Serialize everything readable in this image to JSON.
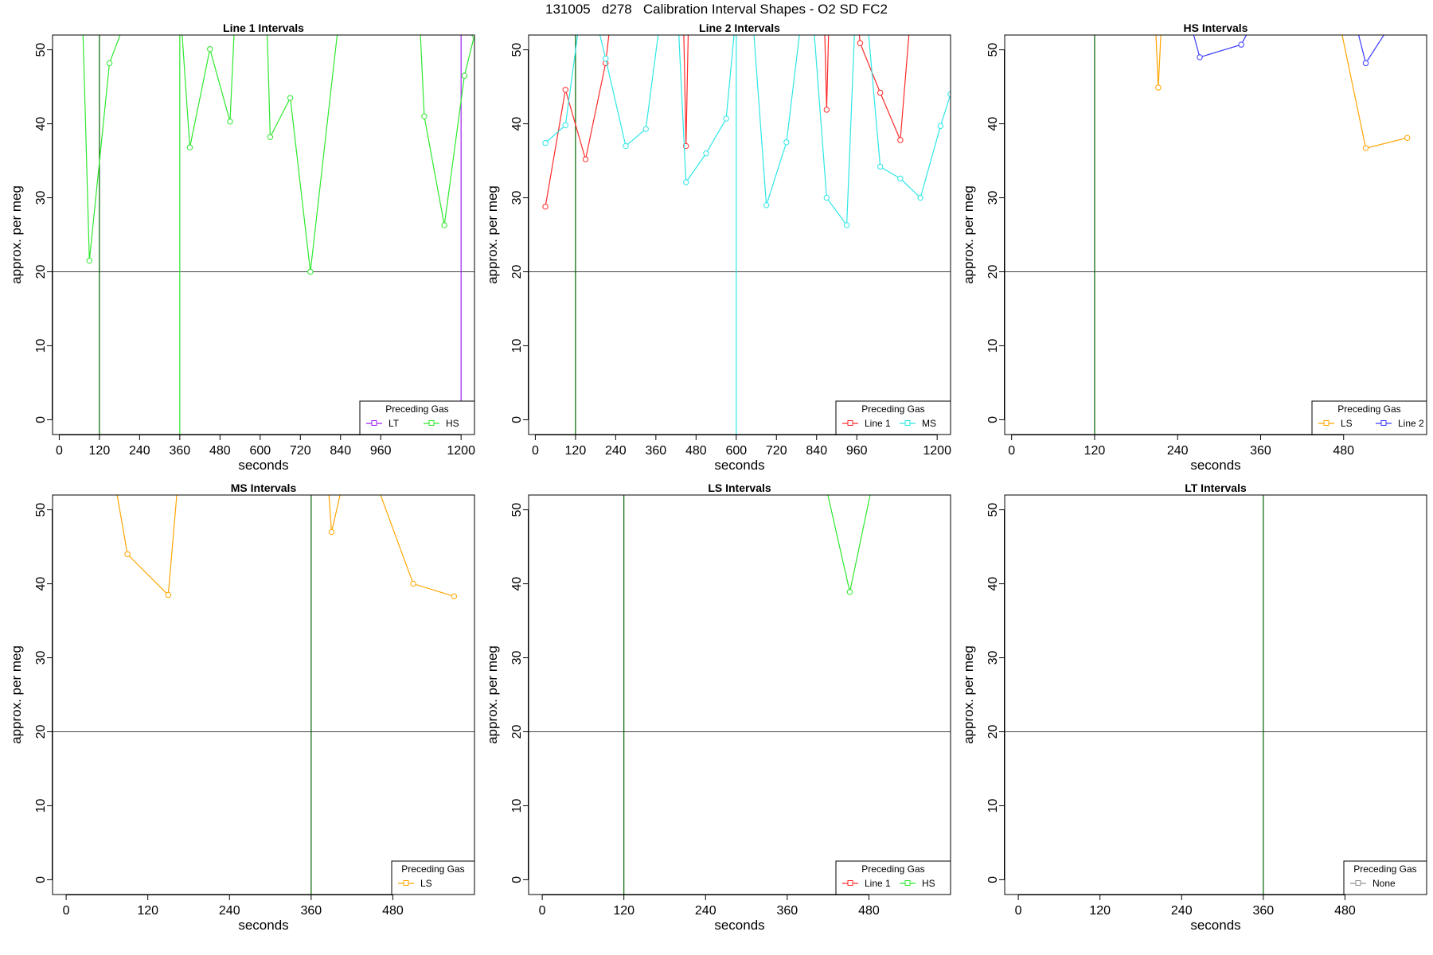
{
  "title": "131005   d278   Calibration Interval Shapes - O2 SD FC2",
  "colors": {
    "Line 1": "#ff2a2a",
    "Line 2": "#3a3aff",
    "HS": "#2ee82e",
    "MS": "#2ee6e6",
    "LS": "#ffa500",
    "LT": "#a020f0",
    "None": "#909090",
    "vline": "#006400",
    "hline": "#444444"
  },
  "chart_data": [
    {
      "type": "line",
      "title": "Line 1 Intervals",
      "xlabel": "seconds",
      "ylabel": "approx. per meg",
      "xlim": [
        -20,
        1240
      ],
      "ylim": [
        -2,
        52
      ],
      "xticks": [
        0,
        120,
        240,
        360,
        480,
        600,
        720,
        840,
        960,
        1200
      ],
      "yticks": [
        0,
        10,
        20,
        30,
        40,
        50
      ],
      "hline": 20,
      "vlines": [
        {
          "x": 120,
          "color": "vline"
        },
        {
          "x": 360,
          "color": "HS"
        },
        {
          "x": 1200,
          "color": "LT"
        }
      ],
      "legend": {
        "title": "Preceding Gas",
        "entries": [
          "LT",
          "HS"
        ]
      },
      "series": [
        {
          "name": "HS",
          "x": [
            60,
            90,
            150,
            190
          ],
          "y": [
            70,
            21.5,
            48.2,
            53
          ]
        },
        {
          "name": "HS",
          "x": [
            340,
            390,
            450,
            510,
            530
          ],
          "y": [
            70,
            36.8,
            50.1,
            40.3,
            60
          ]
        },
        {
          "name": "HS",
          "x": [
            610,
            630,
            690,
            750,
            850
          ],
          "y": [
            70,
            38.2,
            43.5,
            20.0,
            60
          ]
        },
        {
          "name": "HS",
          "x": [
            1060,
            1090,
            1150,
            1210,
            1240
          ],
          "y": [
            70,
            41.0,
            26.3,
            46.5,
            52
          ]
        }
      ]
    },
    {
      "type": "line",
      "title": "Line 2 Intervals",
      "xlabel": "seconds",
      "ylabel": "approx. per meg",
      "xlim": [
        -20,
        1240
      ],
      "ylim": [
        -2,
        52
      ],
      "xticks": [
        0,
        120,
        240,
        360,
        480,
        600,
        720,
        840,
        960,
        1200
      ],
      "yticks": [
        0,
        10,
        20,
        30,
        40,
        50
      ],
      "hline": 20,
      "vlines": [
        {
          "x": 120,
          "color": "vline"
        },
        {
          "x": 600,
          "color": "MS"
        }
      ],
      "legend": {
        "title": "Preceding Gas",
        "entries": [
          "Line 1",
          "MS"
        ]
      },
      "series": [
        {
          "name": "Line 1",
          "x": [
            30,
            90,
            150,
            210,
            240
          ],
          "y": [
            28.8,
            44.6,
            35.2,
            48.2,
            60
          ]
        },
        {
          "name": "Line 1",
          "x": [
            440,
            450,
            460
          ],
          "y": [
            60,
            37.0,
            60
          ]
        },
        {
          "name": "Line 1",
          "x": [
            860,
            870,
            880
          ],
          "y": [
            60,
            41.9,
            60
          ]
        },
        {
          "name": "Line 1",
          "x": [
            950,
            970,
            1030,
            1090,
            1130
          ],
          "y": [
            60,
            50.9,
            44.2,
            37.8,
            60
          ]
        },
        {
          "name": "MS",
          "x": [
            30,
            90,
            150,
            210,
            270,
            330,
            390
          ],
          "y": [
            37.4,
            39.8,
            60,
            48.8,
            37.0,
            39.3,
            60
          ]
        },
        {
          "name": "MS",
          "x": [
            420,
            450,
            510,
            570,
            610
          ],
          "y": [
            60,
            32.1,
            36.0,
            40.7,
            60
          ]
        },
        {
          "name": "MS",
          "x": [
            640,
            690,
            750,
            810
          ],
          "y": [
            60,
            29.0,
            37.5,
            60
          ]
        },
        {
          "name": "MS",
          "x": [
            820,
            870,
            930,
            960
          ],
          "y": [
            60,
            30.0,
            26.3,
            60
          ]
        },
        {
          "name": "MS",
          "x": [
            980,
            1030,
            1090,
            1150,
            1210,
            1240
          ],
          "y": [
            60,
            34.2,
            32.6,
            30.0,
            39.7,
            44
          ]
        }
      ]
    },
    {
      "type": "line",
      "title": "HS Intervals",
      "xlabel": "seconds",
      "ylabel": "approx. per meg",
      "xlim": [
        -10,
        600
      ],
      "ylim": [
        -2,
        52
      ],
      "xticks": [
        0,
        120,
        240,
        360,
        480
      ],
      "yticks": [
        0,
        10,
        20,
        30,
        40,
        50
      ],
      "hline": 20,
      "vlines": [
        {
          "x": 120,
          "color": "vline"
        }
      ],
      "legend": {
        "title": "Preceding Gas",
        "entries": [
          "LS",
          "Line 2"
        ]
      },
      "series": [
        {
          "name": "LS",
          "x": [
            205,
            212,
            220
          ],
          "y": [
            60,
            44.9,
            60
          ]
        },
        {
          "name": "LS",
          "x": [
            460,
            512,
            572
          ],
          "y": [
            60,
            36.7,
            38.1
          ]
        },
        {
          "name": "Line 2",
          "x": [
            240,
            272,
            332,
            345
          ],
          "y": [
            60,
            49.0,
            50.7,
            53
          ]
        },
        {
          "name": "Line 2",
          "x": [
            480,
            512,
            545
          ],
          "y": [
            60,
            48.2,
            53
          ]
        }
      ]
    },
    {
      "type": "line",
      "title": "MS Intervals",
      "xlabel": "seconds",
      "ylabel": "approx. per meg",
      "xlim": [
        -20,
        600
      ],
      "ylim": [
        -2,
        52
      ],
      "xticks": [
        0,
        120,
        240,
        360,
        480
      ],
      "yticks": [
        0,
        10,
        20,
        30,
        40,
        50
      ],
      "hline": 20,
      "vlines": [
        {
          "x": 360,
          "color": "vline"
        }
      ],
      "legend": {
        "title": "Preceding Gas",
        "entries": [
          "LS"
        ]
      },
      "series": [
        {
          "name": "LS",
          "x": [
            60,
            90,
            150,
            170
          ],
          "y": [
            60,
            44.0,
            38.5,
            60
          ]
        },
        {
          "name": "LS",
          "x": [
            380,
            390,
            410
          ],
          "y": [
            60,
            47.0,
            55
          ]
        },
        {
          "name": "LS",
          "x": [
            430,
            510,
            570
          ],
          "y": [
            60,
            40.0,
            38.3
          ]
        }
      ]
    },
    {
      "type": "line",
      "title": "LS Intervals",
      "xlabel": "seconds",
      "ylabel": "approx. per meg",
      "xlim": [
        -20,
        600
      ],
      "ylim": [
        -2,
        52
      ],
      "xticks": [
        0,
        120,
        240,
        360,
        480
      ],
      "yticks": [
        0,
        10,
        20,
        30,
        40,
        50
      ],
      "hline": 20,
      "vlines": [
        {
          "x": 120,
          "color": "vline"
        }
      ],
      "legend": {
        "title": "Preceding Gas",
        "entries": [
          "Line 1",
          "HS"
        ]
      },
      "series": [
        {
          "name": "HS",
          "x": [
            400,
            452,
            500
          ],
          "y": [
            60,
            38.9,
            60
          ]
        }
      ]
    },
    {
      "type": "line",
      "title": "LT Intervals",
      "xlabel": "seconds",
      "ylabel": "approx. per meg",
      "xlim": [
        -20,
        600
      ],
      "ylim": [
        -2,
        52
      ],
      "xticks": [
        0,
        120,
        240,
        360,
        480
      ],
      "yticks": [
        0,
        10,
        20,
        30,
        40,
        50
      ],
      "hline": 20,
      "vlines": [
        {
          "x": 360,
          "color": "vline"
        }
      ],
      "legend": {
        "title": "Preceding Gas",
        "entries": [
          "None"
        ]
      },
      "series": []
    }
  ]
}
